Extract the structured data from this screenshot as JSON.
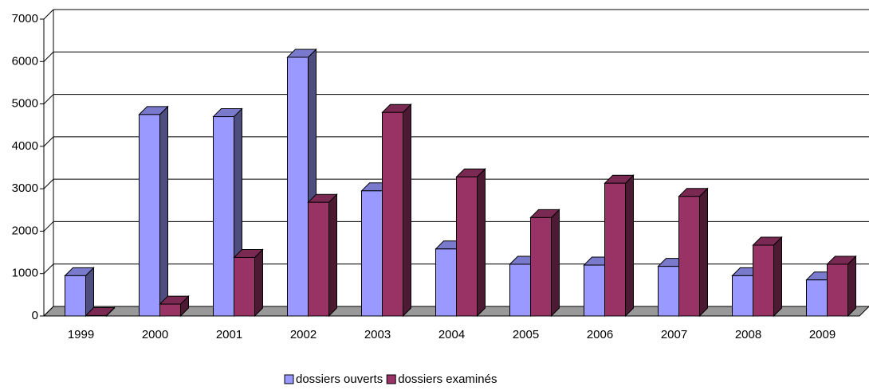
{
  "chart_data": {
    "type": "bar3d",
    "categories": [
      "1999",
      "2000",
      "2001",
      "2002",
      "2003",
      "2004",
      "2005",
      "2006",
      "2007",
      "2008",
      "2009"
    ],
    "series": [
      {
        "name": "dossiers ouverts",
        "color": "#9999ff",
        "values": [
          950,
          4750,
          4700,
          6100,
          2950,
          1580,
          1220,
          1200,
          1170,
          950,
          850
        ]
      },
      {
        "name": "dossiers examinés",
        "color": "#993366",
        "values": [
          10,
          280,
          1380,
          2680,
          4800,
          3280,
          2320,
          3130,
          2820,
          1670,
          1220
        ]
      }
    ],
    "ylim": [
      0,
      7000
    ],
    "yticks": [
      0,
      1000,
      2000,
      3000,
      4000,
      5000,
      6000,
      7000
    ],
    "grid": true,
    "legend": "bottom"
  }
}
